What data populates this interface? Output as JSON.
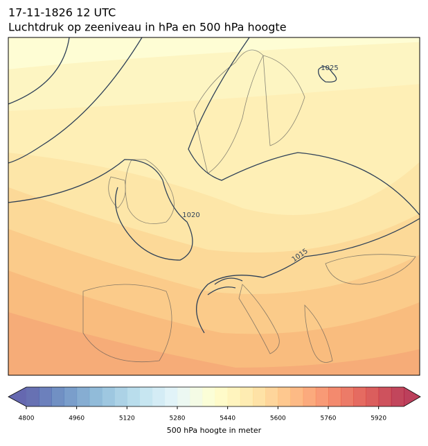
{
  "title": "17-11-1826 12 UTC",
  "subtitle": "Luchtdruk op zeeniveau in hPa en 500 hPa hoogte",
  "contour_labels": [
    "1025",
    "1020",
    "1015"
  ],
  "colorbar": {
    "label": "500 hPa hoogte in meter",
    "lim": [
      4800,
      6000
    ],
    "step": 40,
    "ticks": [
      4800,
      4960,
      5120,
      5280,
      5440,
      5600,
      5760,
      5920
    ]
  }
}
